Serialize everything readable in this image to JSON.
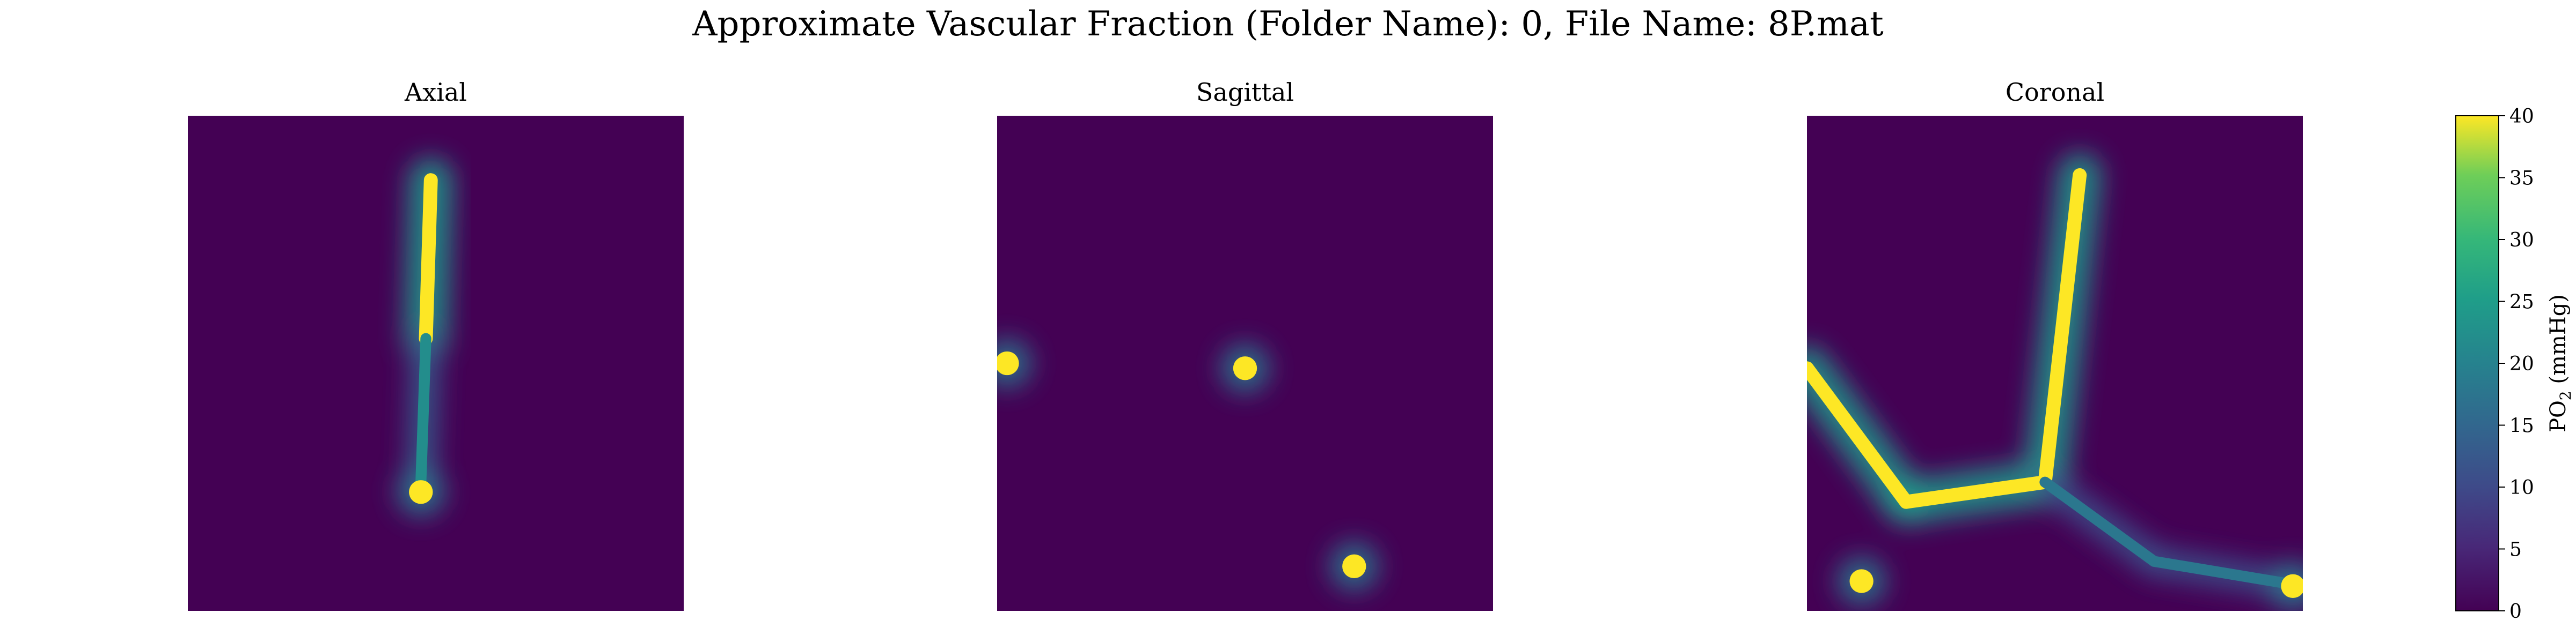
{
  "figure": {
    "title": "Approximate Vascular Fraction (Folder Name): 0, File Name: 8P.mat"
  },
  "colors": {
    "viridis_dark": "#440154",
    "viridis_teal": "#21918c",
    "viridis_yellow": "#fde725"
  },
  "chart_data": [
    {
      "type": "heatmap",
      "title": "Axial",
      "colormap": "viridis",
      "value_range": [
        0,
        40
      ],
      "axes_visible": false,
      "features": [
        {
          "kind": "segment",
          "from": [
            0.49,
            0.13
          ],
          "to": [
            0.48,
            0.45
          ],
          "core_value": 40
        },
        {
          "kind": "segment",
          "from": [
            0.48,
            0.45
          ],
          "to": [
            0.47,
            0.74
          ],
          "core_value": 22
        },
        {
          "kind": "blob",
          "center": [
            0.47,
            0.76
          ],
          "core_value": 40
        }
      ]
    },
    {
      "type": "heatmap",
      "title": "Sagittal",
      "colormap": "viridis",
      "value_range": [
        0,
        40
      ],
      "axes_visible": false,
      "features": [
        {
          "kind": "blob",
          "center": [
            0.02,
            0.5
          ],
          "core_value": 40
        },
        {
          "kind": "blob",
          "center": [
            0.5,
            0.51
          ],
          "core_value": 40
        },
        {
          "kind": "blob",
          "center": [
            0.72,
            0.91
          ],
          "core_value": 40
        }
      ]
    },
    {
      "type": "heatmap",
      "title": "Coronal",
      "colormap": "viridis",
      "value_range": [
        0,
        40
      ],
      "axes_visible": false,
      "features": [
        {
          "kind": "segment",
          "from": [
            0.0,
            0.51
          ],
          "to": [
            0.2,
            0.78
          ],
          "core_value": 40
        },
        {
          "kind": "segment",
          "from": [
            0.2,
            0.78
          ],
          "to": [
            0.48,
            0.74
          ],
          "core_value": 40
        },
        {
          "kind": "segment",
          "from": [
            0.48,
            0.74
          ],
          "to": [
            0.55,
            0.12
          ],
          "core_value": 40
        },
        {
          "kind": "segment",
          "from": [
            0.48,
            0.74
          ],
          "to": [
            0.7,
            0.9
          ],
          "core_value": 18
        },
        {
          "kind": "segment",
          "from": [
            0.7,
            0.9
          ],
          "to": [
            1.0,
            0.95
          ],
          "core_value": 18
        },
        {
          "kind": "blob",
          "center": [
            0.98,
            0.95
          ],
          "core_value": 40
        },
        {
          "kind": "blob",
          "center": [
            0.11,
            0.94
          ],
          "core_value": 40
        }
      ]
    }
  ],
  "colorbar": {
    "label_base": "PO",
    "label_sub": "2",
    "label_unit": " (mmHg)",
    "ticks": [
      0,
      5,
      10,
      15,
      20,
      25,
      30,
      35,
      40
    ],
    "range": [
      0,
      40
    ],
    "colormap": "viridis"
  }
}
